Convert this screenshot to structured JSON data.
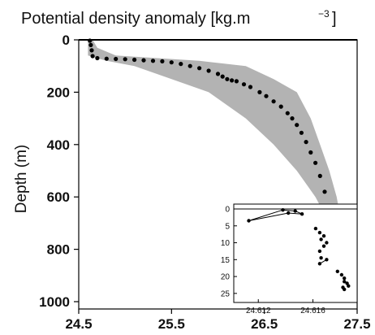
{
  "chart_data": [
    {
      "type": "scatter",
      "title": "Potential density anomaly [kg.m",
      "title_exponent": "−3",
      "title_close": "]",
      "xlabel": "",
      "ylabel": "Depth (m)",
      "xlim": [
        24.5,
        27.5
      ],
      "ylim": [
        0,
        1000
      ],
      "y_inverted": true,
      "grid": false,
      "x_ticks": [
        "24.5",
        "25.5",
        "26.5",
        "27.5"
      ],
      "x_tick_values": [
        24.5,
        25.5,
        26.5,
        27.5
      ],
      "y_ticks": [
        "0",
        "200",
        "400",
        "600",
        "800",
        "1000"
      ],
      "y_tick_values": [
        0,
        200,
        400,
        600,
        800,
        1000
      ],
      "colors": {
        "profile": "#000000",
        "envelope": "#b3b3b3"
      },
      "series": [
        {
          "kind": "points",
          "x": [
            24.62,
            24.63,
            24.64,
            24.65,
            24.7,
            24.8,
            24.9,
            25.0,
            25.1,
            25.2,
            25.3,
            25.4,
            25.5,
            25.6,
            25.7,
            25.8,
            25.9,
            26.0,
            26.05,
            26.1,
            26.15,
            26.2,
            26.28,
            26.35,
            26.45,
            26.52,
            26.6,
            26.68,
            26.75,
            26.8,
            26.85,
            26.9,
            26.95,
            27.0,
            27.05,
            27.1,
            27.15,
            27.2,
            27.24,
            27.28,
            27.3,
            27.32,
            27.34,
            27.36,
            27.38
          ],
          "y": [
            3,
            20,
            40,
            62,
            70,
            72,
            73,
            74,
            76,
            78,
            80,
            82,
            86,
            92,
            100,
            108,
            118,
            130,
            140,
            150,
            155,
            158,
            170,
            180,
            200,
            215,
            235,
            255,
            280,
            300,
            325,
            355,
            390,
            430,
            470,
            520,
            580,
            640,
            700,
            760,
            800,
            850,
            900,
            950,
            990
          ]
        },
        {
          "kind": "envelope",
          "x_min": [
            24.6,
            24.6,
            24.6,
            24.8,
            25.1,
            25.5,
            25.9,
            26.3,
            26.6,
            26.85,
            27.05,
            27.2,
            27.3,
            27.35
          ],
          "x_max": [
            24.65,
            24.7,
            24.9,
            25.8,
            26.3,
            26.6,
            26.85,
            27.0,
            27.1,
            27.2,
            27.28,
            27.33,
            27.38,
            27.42
          ],
          "y": [
            0,
            30,
            60,
            80,
            100,
            150,
            200,
            300,
            400,
            500,
            600,
            700,
            850,
            1000
          ]
        }
      ]
    },
    {
      "type": "scatter",
      "xlim": [
        24.6105,
        24.619
      ],
      "ylim": [
        0,
        26
      ],
      "y_inverted": true,
      "x_ticks": [
        "24.612",
        "24.616"
      ],
      "x_tick_values": [
        24.612,
        24.616
      ],
      "y_ticks": [
        "0",
        "5",
        "10",
        "15",
        "20",
        "25"
      ],
      "y_tick_values": [
        0,
        5,
        10,
        15,
        20,
        25
      ],
      "series": [
        {
          "x": [
            24.6113,
            24.6138,
            24.6142,
            24.6147,
            24.6152,
            24.6162,
            24.6165,
            24.6168,
            24.6166,
            24.617,
            24.6168,
            24.6165,
            24.6166,
            24.617,
            24.6165,
            24.6178,
            24.6181,
            24.6183,
            24.6183,
            24.6185,
            24.6186,
            24.6182,
            24.6183
          ],
          "y": [
            3.5,
            0.3,
            1.2,
            0.6,
            1.5,
            5.8,
            7.0,
            8.0,
            9.0,
            10.0,
            11.0,
            12.5,
            14.5,
            15.0,
            16.2,
            18.5,
            19.5,
            20.5,
            21.5,
            22.0,
            22.8,
            23.2,
            23.8
          ]
        }
      ]
    }
  ]
}
